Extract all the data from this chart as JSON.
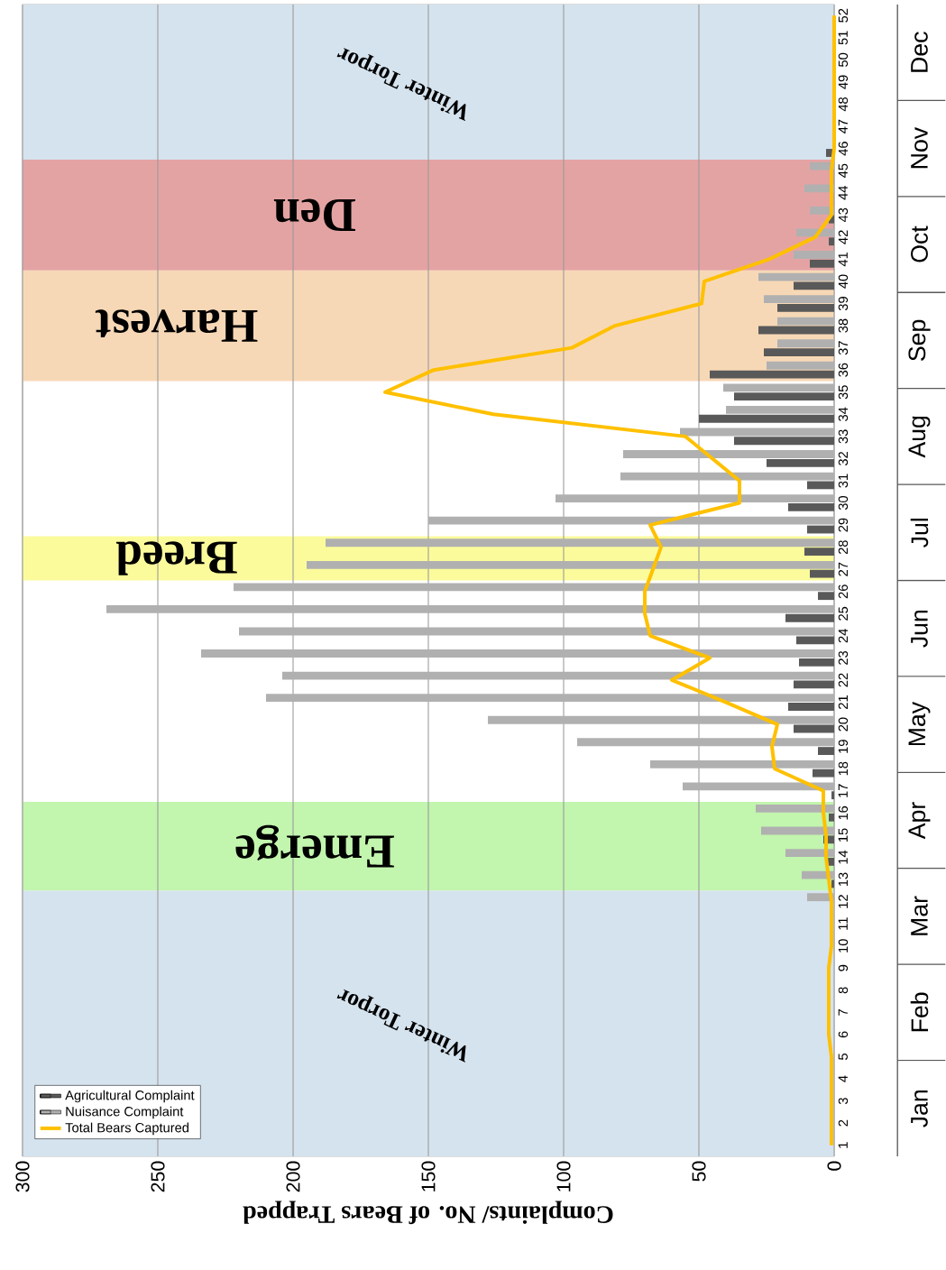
{
  "chart_data": {
    "type": "bar",
    "orientation": "horizontal",
    "categories": [
      "52",
      "51",
      "50",
      "49",
      "48",
      "47",
      "46",
      "45",
      "44",
      "43",
      "42",
      "41",
      "40",
      "39",
      "38",
      "37",
      "36",
      "35",
      "34",
      "33",
      "32",
      "31",
      "30",
      "29",
      "28",
      "27",
      "26",
      "25",
      "24",
      "23",
      "22",
      "21",
      "20",
      "19",
      "18",
      "17",
      "16",
      "15",
      "14",
      "13",
      "12",
      "11",
      "10",
      "9",
      "8",
      "7",
      "6",
      "5",
      "4",
      "3",
      "2",
      "1"
    ],
    "series": [
      {
        "name": "Agricultural Complaint",
        "color": "#595959",
        "values": [
          0,
          0,
          0,
          0,
          0,
          0,
          3,
          null,
          null,
          2,
          2,
          9,
          15,
          21,
          28,
          26,
          46,
          37,
          50,
          37,
          25,
          10,
          17,
          10,
          11,
          9,
          6,
          18,
          14,
          13,
          15,
          17,
          15,
          6,
          8,
          1,
          2,
          4,
          3,
          1,
          0,
          0,
          0,
          0,
          0,
          0,
          0,
          0,
          0,
          0,
          0,
          0
        ]
      },
      {
        "name": "Nuisance Complaint",
        "color": "#b0b0b0",
        "values": [
          0,
          null,
          0,
          0,
          0,
          0,
          0,
          9,
          11,
          9,
          14,
          15,
          28,
          26,
          21,
          21,
          25,
          41,
          40,
          57,
          78,
          79,
          103,
          150,
          188,
          195,
          222,
          269,
          220,
          234,
          204,
          210,
          128,
          95,
          68,
          56,
          29,
          27,
          18,
          12,
          10,
          null,
          0,
          0,
          0,
          0,
          0,
          0,
          0,
          0,
          0,
          0
        ]
      },
      {
        "name": "Total Bears Captured",
        "type": "line",
        "color": "#ffc000",
        "values": [
          0,
          0,
          0,
          0,
          0,
          0,
          0,
          1,
          1,
          1,
          7,
          24,
          48,
          49,
          81,
          97,
          148,
          166,
          126,
          55,
          45,
          35,
          35,
          68,
          64,
          67,
          70,
          70,
          68,
          46,
          60,
          40,
          21,
          23,
          22,
          4,
          4,
          3,
          3,
          2,
          1,
          1,
          1,
          2,
          2,
          2,
          2,
          1,
          1,
          1,
          1,
          1
        ]
      }
    ],
    "xlim": [
      300,
      0
    ],
    "xticks": [
      0,
      50,
      100,
      150,
      200,
      250,
      300
    ],
    "xlabel": "Complaints/ No. of Bears Trapped",
    "bands": [
      {
        "axis": "y",
        "from": "1",
        "to": "12",
        "label": "Winter Torpor",
        "color": "#d5e3ee"
      },
      {
        "axis": "y",
        "from": "13",
        "to": "16",
        "label": "Emerge",
        "color": "#c2f5ae"
      },
      {
        "axis": "y",
        "from": "27",
        "to": "28",
        "label": "Breed",
        "color": "#fbfb9c"
      },
      {
        "axis": "y",
        "from": "36",
        "to": "40",
        "label": "Harvest",
        "color": "#f7d8b6"
      },
      {
        "axis": "y",
        "from": "41",
        "to": "45",
        "label": "Den",
        "color": "#e4a3a3"
      },
      {
        "axis": "y",
        "from": "46",
        "to": "52",
        "label": "Winter Torpor",
        "color": "#d5e3ee"
      }
    ],
    "annotations": [
      "Jan",
      "Feb",
      "Mar",
      "Apr",
      "May",
      "Jun",
      "Jul",
      "Aug",
      "Sep",
      "Oct",
      "Nov",
      "Dec"
    ],
    "grid": "x",
    "legend": "bottom left"
  }
}
